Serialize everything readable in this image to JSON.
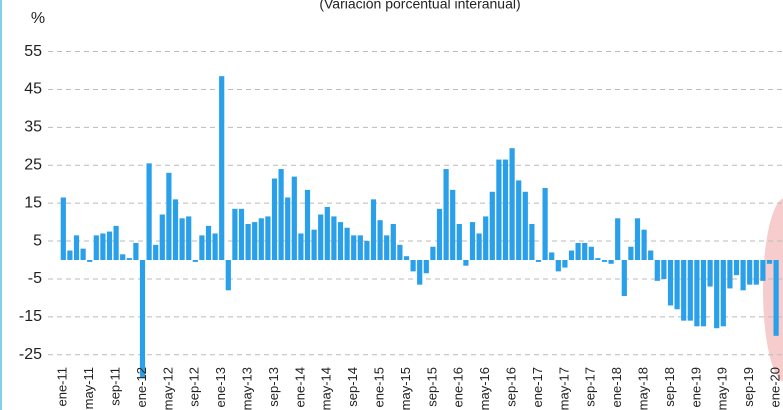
{
  "chart_data": {
    "type": "bar",
    "subtitle": "(Variación porcentual interanual)",
    "y_label": "%",
    "color": "#2a9fea",
    "grid": true,
    "ylim": [
      -32,
      60
    ],
    "yticks": [
      55,
      45,
      35,
      25,
      15,
      5,
      -5,
      -15,
      -25
    ],
    "categories": [
      "ene-11",
      null,
      null,
      null,
      "may-11",
      null,
      null,
      null,
      "sep-11",
      null,
      null,
      null,
      "ene-12",
      null,
      null,
      null,
      "may-12",
      null,
      null,
      null,
      "sep-12",
      null,
      null,
      null,
      "ene-13",
      null,
      null,
      null,
      "may-13",
      null,
      null,
      null,
      "sep-13",
      null,
      null,
      null,
      "ene-14",
      null,
      null,
      null,
      "may-14",
      null,
      null,
      null,
      "sep-14",
      null,
      null,
      null,
      "ene-15",
      null,
      null,
      null,
      "may-15",
      null,
      null,
      null,
      "sep-15",
      null,
      null,
      null,
      "ene-16",
      null,
      null,
      null,
      "may-16",
      null,
      null,
      null,
      "sep-16",
      null,
      null,
      null,
      "ene-17",
      null,
      null,
      null,
      "may-17",
      null,
      null,
      null,
      "sep-17",
      null,
      null,
      null,
      "ene-18",
      null,
      null,
      null,
      "may-18",
      null,
      null,
      null,
      "sep-18",
      null,
      null,
      null,
      "ene-19",
      null,
      null,
      null,
      "may-19",
      null,
      null,
      null,
      "sep-19",
      null,
      null,
      null,
      "ene-20"
    ],
    "values": [
      16.5,
      2.5,
      6.5,
      3,
      -0.5,
      6.5,
      7,
      7.5,
      9,
      1.5,
      0.5,
      4.5,
      -31,
      25.5,
      4,
      12,
      23,
      16,
      11,
      11.5,
      -0.5,
      6.5,
      9,
      7,
      48.5,
      -8,
      13.5,
      13.5,
      9.5,
      10,
      11,
      11.5,
      21.5,
      24,
      16.5,
      22,
      7,
      18.5,
      8,
      12,
      14,
      11.5,
      10,
      8.5,
      6.5,
      6.5,
      5,
      16,
      10.5,
      6.5,
      9.5,
      4,
      1,
      -3,
      -6.5,
      -3.5,
      3.5,
      13.5,
      24,
      18.5,
      9.5,
      -1.5,
      10,
      7,
      11.5,
      18,
      26.5,
      26.5,
      29.5,
      21,
      18,
      9.5,
      -0.5,
      19,
      2,
      -3,
      -2,
      2.5,
      4.5,
      4.5,
      3.5,
      0.5,
      -0.5,
      -1,
      11,
      -9.5,
      3.5,
      11,
      8,
      2.5,
      -5.5,
      -5,
      -12,
      -13,
      -16,
      -16,
      -17.5,
      -17.5,
      -7,
      -18,
      -17.5,
      -7.5,
      -4,
      -8,
      -6.5,
      -6.5,
      -5.5,
      -1,
      -20
    ]
  }
}
